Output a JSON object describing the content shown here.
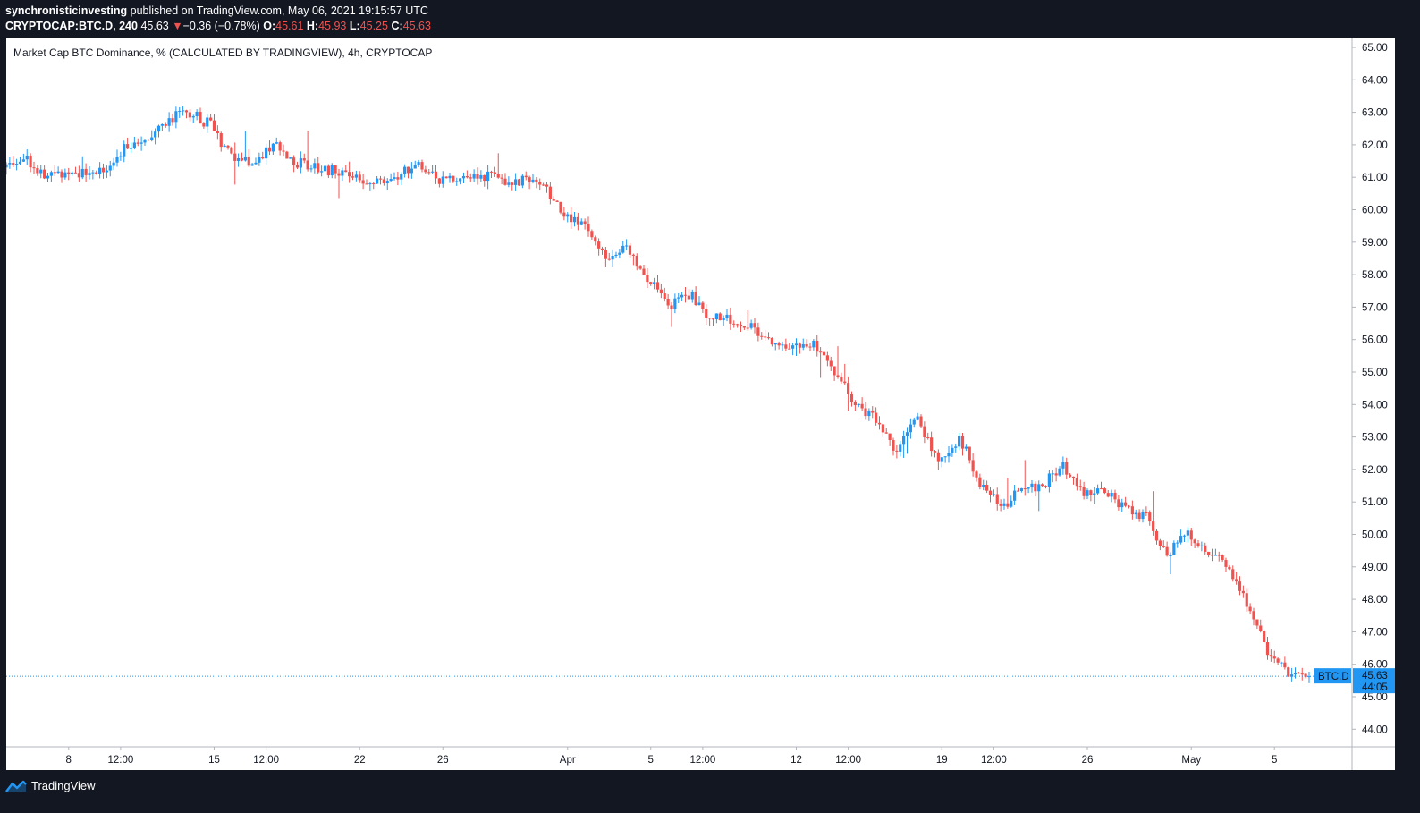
{
  "header": {
    "user": "synchronisticinvesting",
    "published": "published on TradingView.com, May 06, 2021 19:15:57 UTC",
    "symbol": "CRYPTOCAP:BTC.D, 240",
    "last": "45.63",
    "change_arrow": "▼",
    "change": "−0.36 (−0.78%)",
    "o_label": "O:",
    "o": "45.61",
    "h_label": "H:",
    "h": "45.93",
    "l_label": "L:",
    "l": "45.25",
    "c_label": "C:",
    "c": "45.63"
  },
  "colors": {
    "up": "#2196f3",
    "down": "#ef5350",
    "background": "#131722",
    "price_line": "#2196f3"
  },
  "footer": {
    "brand": "TradingView",
    "logo_icon": "tradingview-logo-icon"
  },
  "chart_data": {
    "type": "candlestick",
    "title": "Market Cap BTC Dominance, % (CALCULATED BY TRADINGVIEW), 4h, CRYPTOCAP",
    "y_ticks": [
      "44.00",
      "45.00",
      "46.00",
      "47.00",
      "48.00",
      "49.00",
      "50.00",
      "51.00",
      "52.00",
      "53.00",
      "54.00",
      "55.00",
      "56.00",
      "57.00",
      "58.00",
      "59.00",
      "60.00",
      "61.00",
      "62.00",
      "63.00",
      "64.00",
      "65.00"
    ],
    "ylim": [
      43.2,
      65.4
    ],
    "x_ticks": [
      {
        "label": "8",
        "x": "2021-03-08"
      },
      {
        "label": "12:00",
        "x": "2021-03-10 12:00"
      },
      {
        "label": "15",
        "x": "2021-03-15"
      },
      {
        "label": "12:00",
        "x": "2021-03-17 12:00"
      },
      {
        "label": "22",
        "x": "2021-03-22"
      },
      {
        "label": "26",
        "x": "2021-03-26"
      },
      {
        "label": "Apr",
        "x": "2021-04-01"
      },
      {
        "label": "5",
        "x": "2021-04-05"
      },
      {
        "label": "12:00",
        "x": "2021-04-07 12:00"
      },
      {
        "label": "12",
        "x": "2021-04-12"
      },
      {
        "label": "12:00",
        "x": "2021-04-14 12:00"
      },
      {
        "label": "19",
        "x": "2021-04-19"
      },
      {
        "label": "12:00",
        "x": "2021-04-21 12:00"
      },
      {
        "label": "26",
        "x": "2021-04-26"
      },
      {
        "label": "May",
        "x": "2021-05-01"
      },
      {
        "label": "5",
        "x": "2021-05-05"
      }
    ],
    "close_path": [
      {
        "x": "2021-03-05",
        "y": 61.3
      },
      {
        "x": "2021-03-06",
        "y": 61.7
      },
      {
        "x": "2021-03-07",
        "y": 61.0
      },
      {
        "x": "2021-03-08",
        "y": 61.2
      },
      {
        "x": "2021-03-09",
        "y": 61.1
      },
      {
        "x": "2021-03-10",
        "y": 61.3
      },
      {
        "x": "2021-03-11",
        "y": 62.0
      },
      {
        "x": "2021-03-12",
        "y": 62.3
      },
      {
        "x": "2021-03-13",
        "y": 62.8
      },
      {
        "x": "2021-03-14",
        "y": 63.0
      },
      {
        "x": "2021-03-15",
        "y": 62.6
      },
      {
        "x": "2021-03-16",
        "y": 61.6
      },
      {
        "x": "2021-03-17",
        "y": 61.4
      },
      {
        "x": "2021-03-18",
        "y": 62.0
      },
      {
        "x": "2021-03-19",
        "y": 61.5
      },
      {
        "x": "2021-03-20",
        "y": 61.3
      },
      {
        "x": "2021-03-21",
        "y": 61.2
      },
      {
        "x": "2021-03-22",
        "y": 61.0
      },
      {
        "x": "2021-03-23",
        "y": 60.9
      },
      {
        "x": "2021-03-24",
        "y": 61.0
      },
      {
        "x": "2021-03-25",
        "y": 61.5
      },
      {
        "x": "2021-03-26",
        "y": 60.9
      },
      {
        "x": "2021-03-27",
        "y": 61.0
      },
      {
        "x": "2021-03-28",
        "y": 61.1
      },
      {
        "x": "2021-03-29",
        "y": 60.9
      },
      {
        "x": "2021-03-30",
        "y": 60.9
      },
      {
        "x": "2021-03-31",
        "y": 60.7
      },
      {
        "x": "2021-04-01",
        "y": 59.9
      },
      {
        "x": "2021-04-02",
        "y": 59.5
      },
      {
        "x": "2021-04-03",
        "y": 58.5
      },
      {
        "x": "2021-04-04",
        "y": 58.8
      },
      {
        "x": "2021-04-05",
        "y": 57.9
      },
      {
        "x": "2021-04-06",
        "y": 57.0
      },
      {
        "x": "2021-04-07",
        "y": 57.4
      },
      {
        "x": "2021-04-08",
        "y": 56.7
      },
      {
        "x": "2021-04-09",
        "y": 56.6
      },
      {
        "x": "2021-04-10",
        "y": 56.4
      },
      {
        "x": "2021-04-11",
        "y": 56.0
      },
      {
        "x": "2021-04-12",
        "y": 55.7
      },
      {
        "x": "2021-04-13",
        "y": 55.8
      },
      {
        "x": "2021-04-14",
        "y": 55.0
      },
      {
        "x": "2021-04-15",
        "y": 54.0
      },
      {
        "x": "2021-04-16",
        "y": 53.5
      },
      {
        "x": "2021-04-17",
        "y": 52.6
      },
      {
        "x": "2021-04-18",
        "y": 53.6
      },
      {
        "x": "2021-04-19",
        "y": 52.2
      },
      {
        "x": "2021-04-20",
        "y": 53.0
      },
      {
        "x": "2021-04-21",
        "y": 51.6
      },
      {
        "x": "2021-04-22",
        "y": 50.8
      },
      {
        "x": "2021-04-23",
        "y": 51.4
      },
      {
        "x": "2021-04-24",
        "y": 51.5
      },
      {
        "x": "2021-04-25",
        "y": 52.1
      },
      {
        "x": "2021-04-26",
        "y": 51.2
      },
      {
        "x": "2021-04-27",
        "y": 51.4
      },
      {
        "x": "2021-04-28",
        "y": 50.8
      },
      {
        "x": "2021-04-29",
        "y": 50.5
      },
      {
        "x": "2021-04-30",
        "y": 49.3
      },
      {
        "x": "2021-05-01",
        "y": 50.1
      },
      {
        "x": "2021-05-02",
        "y": 49.5
      },
      {
        "x": "2021-05-03",
        "y": 48.9
      },
      {
        "x": "2021-05-04",
        "y": 47.6
      },
      {
        "x": "2021-05-05",
        "y": 46.2
      },
      {
        "x": "2021-05-06",
        "y": 45.63
      }
    ],
    "price_label": {
      "name": "BTC.D",
      "value": "45.63",
      "countdown": "44:05"
    }
  }
}
